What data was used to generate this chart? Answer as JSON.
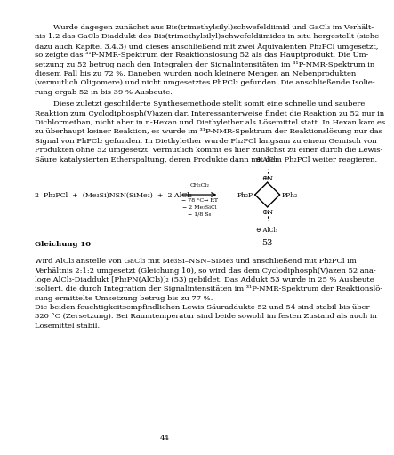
{
  "background_color": "#ffffff",
  "page_width": 4.53,
  "page_height": 6.4,
  "font_family": "DejaVu Serif",
  "font_size": 6.0,
  "text_color": "#000000",
  "top_lines": [
    "        Wurde dagegen zunächst aus Bis(trimethylsilyl)schwefeldiimid und GaCl₃ im Verhält-",
    "nis 1:2 das GaCl₃-Diaddukt des Bis(trimethylsilyl)schwefeldiimides in situ hergestellt (siehe",
    "dazu auch Kapitel 3.4.3) und dieses anschließend mit zwei Äquivalenten Ph₂PCl umgesetzt,",
    "so zeigte das ³¹P-NMR-Spektrum der Reaktionslösung 52 als das Hauptprodukt. Die Um-",
    "setzung zu 52 betrug nach den Integralen der Signalintensitäten im ³¹P-NMR-Spektrum in",
    "diesem Fall bis zu 72 %. Daneben wurden noch kleinere Mengen an Nebenprodukten",
    "(vermutlich Oligomere) und nicht umgesetztes PhPCl₂ gefunden. Die anschließende Isolie-",
    "rung ergab 52 in bis 39 % Ausbeute."
  ],
  "second_lines": [
    "        Diese zuletzt geschilderte Synthesemethode stellt somit eine schnelle und saubere",
    "Reaktion zum Cyclodiphosph(V)azen dar. Interessanterweise findet die Reaktion zu 52 nur in",
    "Dichlormethan, nicht aber in n-Hexan und Diethylether als Lösemittel statt. In Hexan kam es",
    "zu überhaupt keiner Reaktion, es wurde im ³¹P-NMR-Spektrum der Reaktionslösung nur das",
    "Signal von PhPCl₂ gefunden. In Diethylether wurde Ph₂PCl langsam zu einem Gemisch von",
    "Produkten ohne 52 umgesetzt. Vermutlich kommt es hier zunächst zu einer durch die Lewis-",
    "Säure katalysierten Etherspaltung, deren Produkte dann mit dem Ph₂PCl weiter reagieren."
  ],
  "third_lines": [
    "Wird AlCl₃ anstelle von GaCl₃ mit Me₃Si–NSN–SiMe₃ und anschließend mit Ph₂PCl im",
    "Verhältnis 2:1:2 umgesetzt (Gleichung 10), so wird das dem Cyclodiphosph(V)azen 52 ana-",
    "loge AlCl₃-Diaddukt [Ph₂PN(AlCl₃)]₂ (53) gebildet. Das Addukt 53 wurde in 25 % Ausbeute",
    "isoliert, die durch Integration der Signalintensitäten im ³¹P-NMR-Spektrum der Reaktionslö-",
    "sung ermittelte Umsetzung betrug bis zu 77 %."
  ],
  "fourth_lines": [
    "Die beiden feuchtigkeitsempfindlichen Lewis-Säuraddukte 52 und 54 sind stabil bis über",
    "320 °C (Zersetzung). Bei Raumtemperatur sind beide sowohl im festen Zustand als auch in",
    "Lösemittel stabil."
  ],
  "gleichung_label": "Gleichung 10",
  "page_number": "44"
}
